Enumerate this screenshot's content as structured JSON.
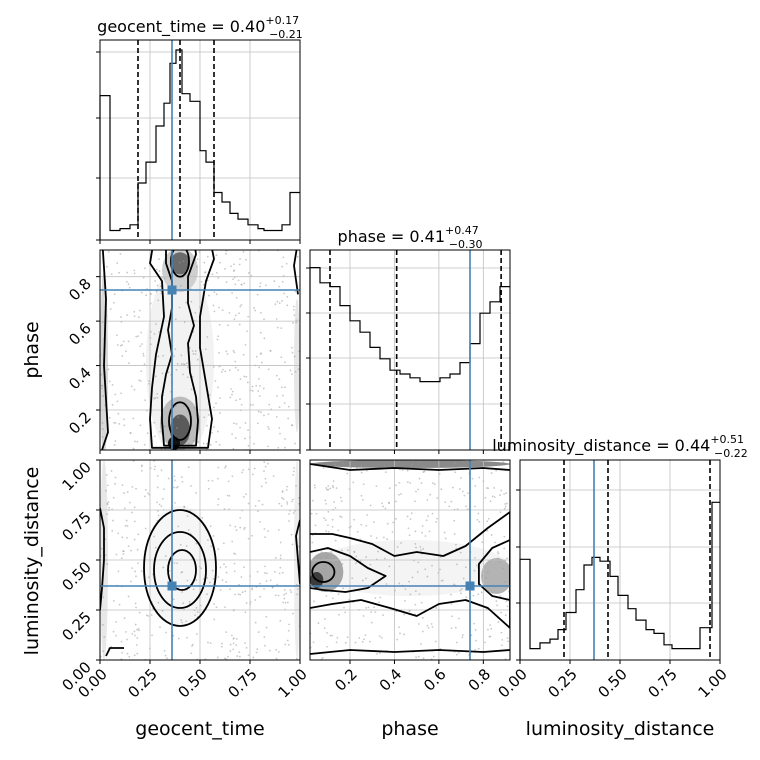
{
  "chart_data": {
    "type": "corner",
    "truths": {
      "geocent_time": 0.36,
      "phase": 0.74,
      "luminosity_distance": 0.37
    },
    "parameters": [
      {
        "name": "geocent_time",
        "label": "geocent_time",
        "title": {
          "prefix": "geocent_time = 0.40",
          "plus": "+0.17",
          "minus": "−0.21"
        },
        "range": [
          0,
          1
        ],
        "ticks": [
          0.0,
          0.25,
          0.5,
          0.75,
          1.0
        ],
        "tick_labels": [
          "0.00",
          "0.25",
          "0.50",
          "0.75",
          "1.00"
        ],
        "quantiles": [
          0.19,
          0.4,
          0.57
        ],
        "hist_edges": [
          0.0,
          0.05,
          0.1,
          0.15,
          0.19,
          0.23,
          0.28,
          0.32,
          0.35,
          0.38,
          0.41,
          0.45,
          0.5,
          0.53,
          0.57,
          0.61,
          0.65,
          0.69,
          0.74,
          0.79,
          0.82,
          0.86,
          0.91,
          0.95,
          1.0
        ],
        "hist_values": [
          0.76,
          0.05,
          0.06,
          0.08,
          0.3,
          0.41,
          0.6,
          0.72,
          0.93,
          1.0,
          0.77,
          0.73,
          0.47,
          0.41,
          0.25,
          0.2,
          0.14,
          0.11,
          0.08,
          0.06,
          0.05,
          0.05,
          0.08,
          0.25
        ]
      },
      {
        "name": "phase",
        "label": "phase",
        "title": {
          "prefix": "phase = 0.41",
          "plus": "+0.47",
          "minus": "−0.30"
        },
        "range": [
          0.02,
          0.92
        ],
        "ticks": [
          0.2,
          0.4,
          0.6,
          0.8
        ],
        "tick_labels": [
          "0.2",
          "0.4",
          "0.6",
          "0.8"
        ],
        "quantiles": [
          0.11,
          0.41,
          0.88
        ],
        "hist_edges": [
          0.02,
          0.065,
          0.11,
          0.155,
          0.2,
          0.245,
          0.29,
          0.335,
          0.38,
          0.425,
          0.47,
          0.515,
          0.56,
          0.605,
          0.65,
          0.695,
          0.74,
          0.785,
          0.83,
          0.875,
          0.92
        ],
        "hist_values": [
          0.96,
          0.88,
          0.86,
          0.76,
          0.68,
          0.62,
          0.54,
          0.48,
          0.42,
          0.4,
          0.38,
          0.36,
          0.36,
          0.38,
          0.4,
          0.46,
          0.56,
          0.72,
          0.78,
          0.86
        ]
      },
      {
        "name": "luminosity_distance",
        "label": "luminosity_distance",
        "title": {
          "prefix": "luminosity_distance = 0.44",
          "plus": "+0.51",
          "minus": "−0.22"
        },
        "range": [
          0,
          1
        ],
        "ticks": [
          0.0,
          0.25,
          0.5,
          0.75,
          1.0
        ],
        "tick_labels": [
          "0.00",
          "0.25",
          "0.50",
          "0.75",
          "1.00"
        ],
        "quantiles": [
          0.22,
          0.44,
          0.95
        ],
        "hist_edges": [
          0.0,
          0.05,
          0.1,
          0.15,
          0.19,
          0.23,
          0.28,
          0.32,
          0.36,
          0.4,
          0.45,
          0.49,
          0.54,
          0.58,
          0.63,
          0.67,
          0.72,
          0.76,
          0.81,
          0.85,
          0.9,
          0.96,
          1.0
        ],
        "hist_values": [
          0.53,
          0.06,
          0.09,
          0.11,
          0.16,
          0.25,
          0.37,
          0.5,
          0.54,
          0.52,
          0.44,
          0.34,
          0.27,
          0.21,
          0.16,
          0.14,
          0.08,
          0.06,
          0.06,
          0.06,
          0.17,
          0.83
        ]
      }
    ],
    "panels_2d": [
      {
        "x": "geocent_time",
        "y": "phase"
      },
      {
        "x": "geocent_time",
        "y": "luminosity_distance"
      },
      {
        "x": "phase",
        "y": "luminosity_distance"
      }
    ],
    "colors": {
      "truth": "#4682b4",
      "contour": "#000000",
      "grid": "#bfbfbf"
    },
    "grid": true
  }
}
